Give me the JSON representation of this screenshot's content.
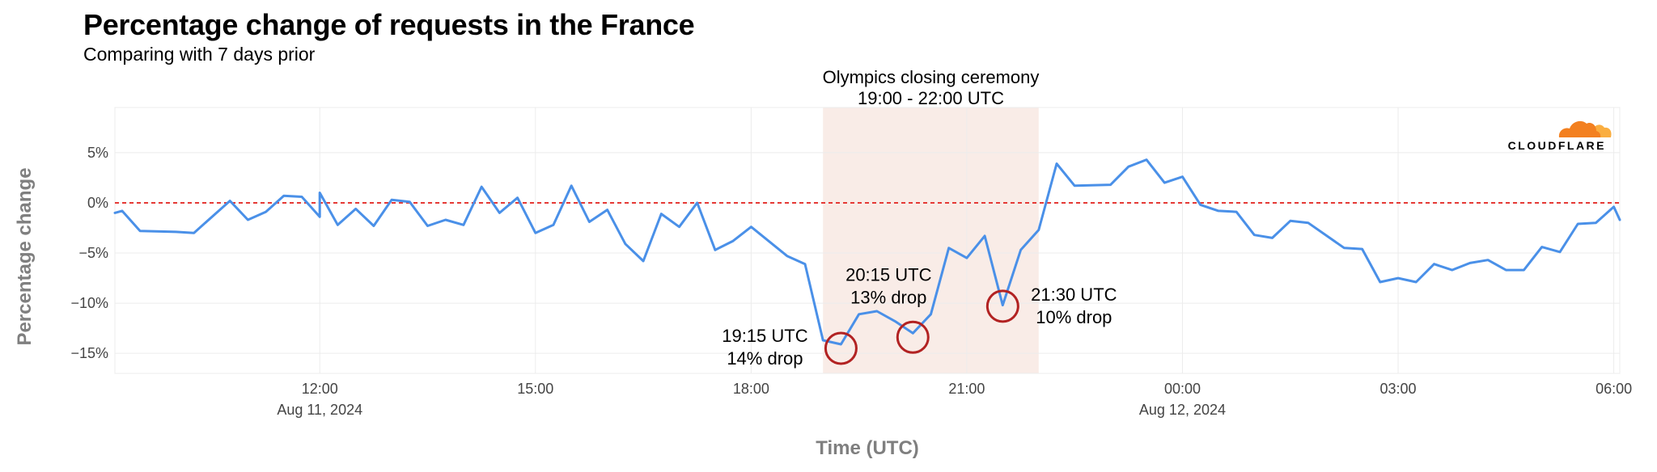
{
  "title": "Percentage change of requests in the France",
  "subtitle": "Comparing with 7 days prior",
  "logo_text": "CLOUDFLARE",
  "colors": {
    "line": "#4a90e8",
    "baseline": "#e53935",
    "highlight": "#f9ece7",
    "marker": "#b22222",
    "axis_text": "#444444",
    "axis_title": "#7f7f7f",
    "grid": "#ececec",
    "logo_orange": "#f38020",
    "logo_orange_light": "#faae40"
  },
  "chart_data": {
    "type": "line",
    "title": "Percentage change of requests in the France",
    "subtitle": "Comparing with 7 days prior",
    "xlabel": "Time (UTC)",
    "ylabel": "Percentage change",
    "x_ticks": [
      {
        "time": "2024-08-11 12:00",
        "label": "12:00",
        "sublabel": "Aug 11, 2024"
      },
      {
        "time": "2024-08-11 15:00",
        "label": "15:00",
        "sublabel": ""
      },
      {
        "time": "2024-08-11 18:00",
        "label": "18:00",
        "sublabel": ""
      },
      {
        "time": "2024-08-11 21:00",
        "label": "21:00",
        "sublabel": ""
      },
      {
        "time": "2024-08-12 00:00",
        "label": "00:00",
        "sublabel": "Aug 12, 2024"
      },
      {
        "time": "2024-08-12 03:00",
        "label": "03:00",
        "sublabel": ""
      },
      {
        "time": "2024-08-12 06:00",
        "label": "06:00",
        "sublabel": ""
      }
    ],
    "y_ticks": [
      {
        "value": 5,
        "label": "5%"
      },
      {
        "value": 0,
        "label": "0%"
      },
      {
        "value": -5,
        "label": "−5%"
      },
      {
        "value": -10,
        "label": "−10%"
      },
      {
        "value": -15,
        "label": "−15%"
      }
    ],
    "xlim": [
      "2024-08-11 09:09",
      "2024-08-12 06:05"
    ],
    "ylim": [
      -17,
      9.5
    ],
    "grid": true,
    "baseline": {
      "value": 0,
      "style": "dashed"
    },
    "highlight": {
      "start": "2024-08-11 19:00",
      "end": "2024-08-11 22:00",
      "label_line1": "Olympics closing ceremony",
      "label_line2": "19:00 - 22:00 UTC"
    },
    "annotations": [
      {
        "time": "2024-08-11 19:15",
        "value": -14.5,
        "line1": "19:15 UTC",
        "line2": "14% drop",
        "side": "left"
      },
      {
        "time": "2024-08-11 20:15",
        "value": -13.4,
        "line1": "20:15 UTC",
        "line2": "13% drop",
        "side": "above"
      },
      {
        "time": "2024-08-11 21:30",
        "value": -10.3,
        "line1": "21:30 UTC",
        "line2": "10% drop",
        "side": "right"
      }
    ],
    "series": [
      {
        "points": [
          [
            "2024-08-11 09:09",
            -1.0
          ],
          [
            "2024-08-11 09:15",
            -0.8
          ],
          [
            "2024-08-11 09:30",
            -2.8
          ],
          [
            "2024-08-11 10:00",
            -2.9
          ],
          [
            "2024-08-11 10:15",
            -3.0
          ],
          [
            "2024-08-11 10:45",
            0.2
          ],
          [
            "2024-08-11 11:00",
            -1.7
          ],
          [
            "2024-08-11 11:15",
            -0.9
          ],
          [
            "2024-08-11 11:30",
            0.7
          ],
          [
            "2024-08-11 11:45",
            0.6
          ],
          [
            "2024-08-11 12:00",
            -1.4
          ],
          [
            "2024-08-11 12:00",
            -1.4
          ],
          [
            "2024-08-11 12:00",
            1.0
          ],
          [
            "2024-08-11 12:15",
            -2.2
          ],
          [
            "2024-08-11 12:30",
            -0.6
          ],
          [
            "2024-08-11 12:45",
            -2.3
          ],
          [
            "2024-08-11 13:00",
            0.3
          ],
          [
            "2024-08-11 13:15",
            0.1
          ],
          [
            "2024-08-11 13:30",
            -2.3
          ],
          [
            "2024-08-11 13:45",
            -1.7
          ],
          [
            "2024-08-11 14:00",
            -2.2
          ],
          [
            "2024-08-11 14:15",
            1.6
          ],
          [
            "2024-08-11 14:30",
            -1.0
          ],
          [
            "2024-08-11 14:45",
            0.5
          ],
          [
            "2024-08-11 15:00",
            -3.0
          ],
          [
            "2024-08-11 15:15",
            -2.2
          ],
          [
            "2024-08-11 15:30",
            1.7
          ],
          [
            "2024-08-11 15:45",
            -1.9
          ],
          [
            "2024-08-11 16:00",
            -0.7
          ],
          [
            "2024-08-11 16:15",
            -4.1
          ],
          [
            "2024-08-11 16:30",
            -5.8
          ],
          [
            "2024-08-11 16:45",
            -1.1
          ],
          [
            "2024-08-11 17:00",
            -2.4
          ],
          [
            "2024-08-11 17:15",
            0.0
          ],
          [
            "2024-08-11 17:30",
            -4.7
          ],
          [
            "2024-08-11 17:45",
            -3.8
          ],
          [
            "2024-08-11 18:00",
            -2.4
          ],
          [
            "2024-08-11 18:30",
            -5.3
          ],
          [
            "2024-08-11 18:45",
            -6.1
          ],
          [
            "2024-08-11 19:00",
            -13.7
          ],
          [
            "2024-08-11 19:15",
            -14.1
          ],
          [
            "2024-08-11 19:30",
            -11.1
          ],
          [
            "2024-08-11 19:45",
            -10.8
          ],
          [
            "2024-08-11 20:00",
            -11.8
          ],
          [
            "2024-08-11 20:15",
            -13.0
          ],
          [
            "2024-08-11 20:30",
            -11.1
          ],
          [
            "2024-08-11 20:45",
            -4.5
          ],
          [
            "2024-08-11 21:00",
            -5.5
          ],
          [
            "2024-08-11 21:15",
            -3.3
          ],
          [
            "2024-08-11 21:30",
            -10.2
          ],
          [
            "2024-08-11 21:45",
            -4.7
          ],
          [
            "2024-08-11 22:00",
            -2.7
          ],
          [
            "2024-08-11 22:15",
            3.9
          ],
          [
            "2024-08-11 22:30",
            1.7
          ],
          [
            "2024-08-11 23:00",
            1.8
          ],
          [
            "2024-08-11 23:15",
            3.6
          ],
          [
            "2024-08-11 23:30",
            4.3
          ],
          [
            "2024-08-11 23:45",
            2.0
          ],
          [
            "2024-08-12 00:00",
            2.6
          ],
          [
            "2024-08-12 00:15",
            -0.2
          ],
          [
            "2024-08-12 00:30",
            -0.8
          ],
          [
            "2024-08-12 00:45",
            -0.9
          ],
          [
            "2024-08-12 01:00",
            -3.2
          ],
          [
            "2024-08-12 01:15",
            -3.5
          ],
          [
            "2024-08-12 01:30",
            -1.8
          ],
          [
            "2024-08-12 01:45",
            -2.0
          ],
          [
            "2024-08-12 02:15",
            -4.5
          ],
          [
            "2024-08-12 02:30",
            -4.6
          ],
          [
            "2024-08-12 02:45",
            -7.9
          ],
          [
            "2024-08-12 03:00",
            -7.5
          ],
          [
            "2024-08-12 03:15",
            -7.9
          ],
          [
            "2024-08-12 03:30",
            -6.1
          ],
          [
            "2024-08-12 03:45",
            -6.7
          ],
          [
            "2024-08-12 04:00",
            -6.0
          ],
          [
            "2024-08-12 04:15",
            -5.7
          ],
          [
            "2024-08-12 04:30",
            -6.7
          ],
          [
            "2024-08-12 04:45",
            -6.7
          ],
          [
            "2024-08-12 05:00",
            -4.4
          ],
          [
            "2024-08-12 05:15",
            -4.9
          ],
          [
            "2024-08-12 05:30",
            -2.1
          ],
          [
            "2024-08-12 05:45",
            -2.0
          ],
          [
            "2024-08-12 06:00",
            -0.4
          ],
          [
            "2024-08-12 06:05",
            -1.7
          ]
        ]
      }
    ]
  }
}
